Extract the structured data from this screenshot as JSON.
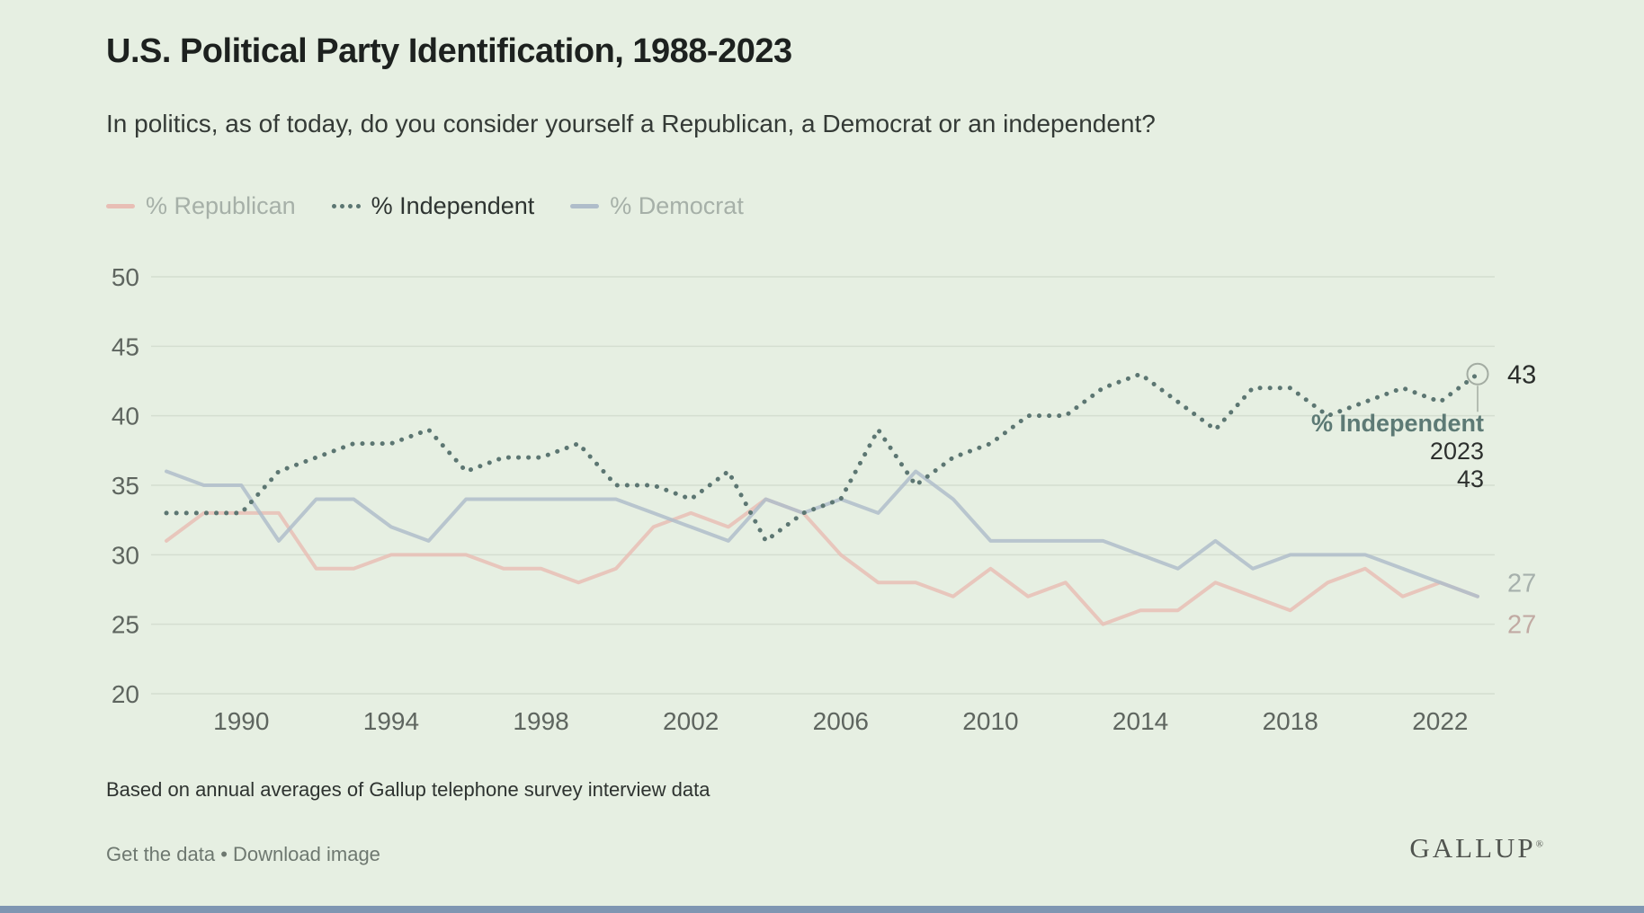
{
  "header": {
    "title": "U.S. Political Party Identification, 1988-2023",
    "subtitle": "In politics, as of today, do you consider yourself a Republican, a Democrat or an independent?"
  },
  "legend": [
    {
      "label": "% Republican",
      "type": "line",
      "color": "#e8beb5",
      "label_color": "#a6b0a8"
    },
    {
      "label": "% Independent",
      "type": "dotted",
      "color": "#5c7672",
      "label_color": "#2e3431"
    },
    {
      "label": "% Democrat",
      "type": "line",
      "color": "#afbdca",
      "label_color": "#a6b0a8"
    }
  ],
  "chart_data": {
    "type": "line",
    "title": "U.S. Political Party Identification, 1988-2023",
    "x": [
      1988,
      1989,
      1990,
      1991,
      1992,
      1993,
      1994,
      1995,
      1996,
      1997,
      1998,
      1999,
      2000,
      2001,
      2002,
      2003,
      2004,
      2005,
      2006,
      2007,
      2008,
      2009,
      2010,
      2011,
      2012,
      2013,
      2014,
      2015,
      2016,
      2017,
      2018,
      2019,
      2020,
      2021,
      2022,
      2023
    ],
    "series": [
      {
        "name": "% Republican",
        "style": "solid",
        "color": "#e8beb5",
        "values": [
          31,
          33,
          33,
          33,
          29,
          29,
          30,
          30,
          30,
          29,
          29,
          28,
          29,
          32,
          33,
          32,
          34,
          33,
          30,
          28,
          28,
          27,
          29,
          27,
          28,
          25,
          26,
          26,
          28,
          27,
          26,
          28,
          29,
          27,
          28,
          27
        ],
        "end_label": "27",
        "end_label_color": "#c1aaa3",
        "end_label_dy": 31
      },
      {
        "name": "% Democrat",
        "style": "solid",
        "color": "#afbdca",
        "values": [
          36,
          35,
          35,
          31,
          34,
          34,
          32,
          31,
          34,
          34,
          34,
          34,
          34,
          33,
          32,
          31,
          34,
          33,
          34,
          33,
          36,
          34,
          31,
          31,
          31,
          31,
          30,
          29,
          31,
          29,
          30,
          30,
          30,
          29,
          28,
          27
        ],
        "end_label": "27",
        "end_label_color": "#a6b0ac",
        "end_label_dy": -15
      },
      {
        "name": "% Independent",
        "style": "dotted",
        "color": "#5c7672",
        "values": [
          33,
          33,
          33,
          36,
          37,
          38,
          38,
          39,
          36,
          37,
          37,
          38,
          35,
          35,
          34,
          36,
          31,
          33,
          34,
          39,
          35,
          37,
          38,
          40,
          40,
          42,
          43,
          41,
          39,
          42,
          42,
          40,
          41,
          42,
          41,
          43
        ],
        "end_label": "43",
        "end_label_color": "#2a2d2b",
        "end_label_dy": 0
      }
    ],
    "ylim": [
      20,
      50
    ],
    "yticks": [
      50,
      45,
      40,
      35,
      30,
      25,
      20
    ],
    "xticks": [
      1990,
      1994,
      1998,
      2002,
      2006,
      2010,
      2014,
      2018,
      2022
    ],
    "grid": "horizontal",
    "legend_position": "top",
    "marker": {
      "series": "% Independent",
      "ring_color": "#a3aca2"
    }
  },
  "tooltip": {
    "series": "% Independent",
    "year": "2023",
    "value": "43"
  },
  "footer": {
    "note": "Based on annual averages of Gallup telephone survey interview data",
    "link1": "Get the data",
    "separator": "•",
    "link2": "Download image",
    "logo": "GALLUP",
    "logo_mark": "®"
  },
  "colors": {
    "background": "#e6efe2",
    "gridline": "#d4ded0",
    "axis_label": "#5e655f",
    "bottom_bar": "#7f96b2"
  }
}
